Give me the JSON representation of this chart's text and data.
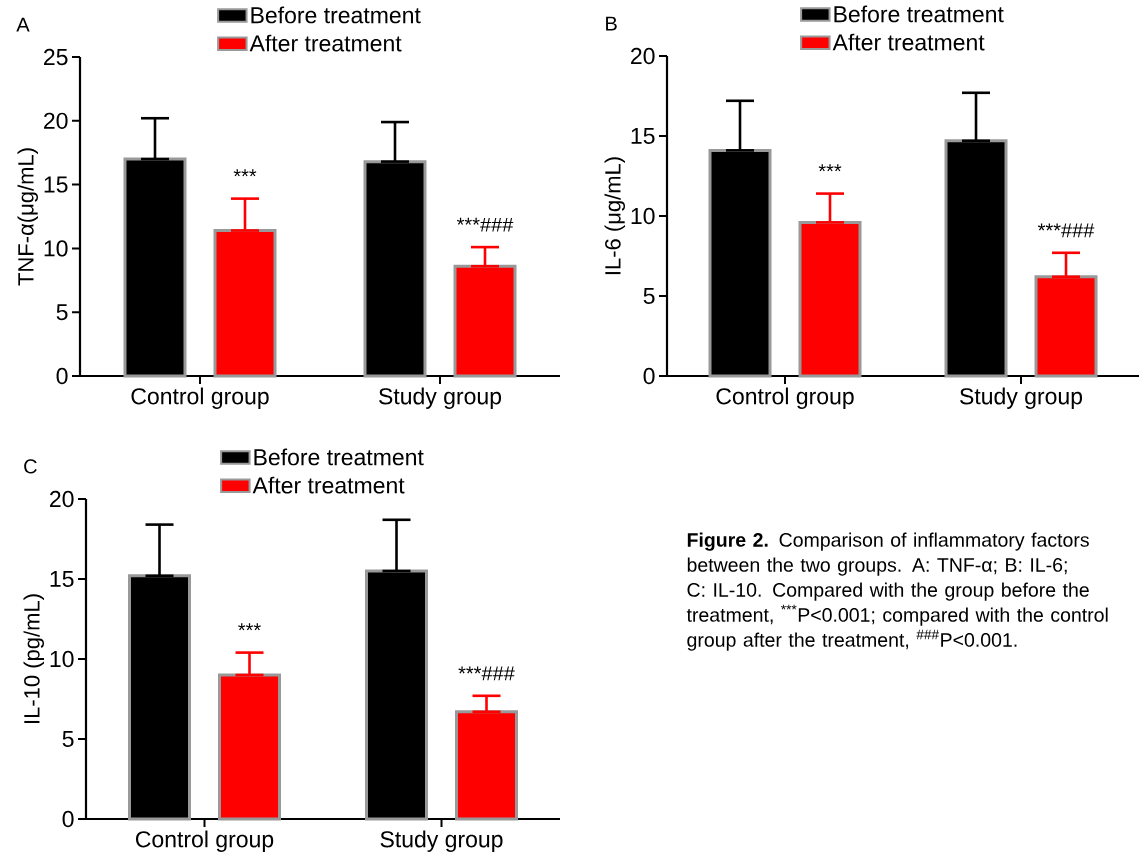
{
  "chart_data": [
    {
      "type": "bar",
      "title": "A",
      "ylabel": "TNF-α(μg/mL)",
      "categories": [
        "Control group",
        "Study group"
      ],
      "series": [
        {
          "name": "Before treatment",
          "color": "#000000",
          "values": [
            17.0,
            16.8
          ],
          "errors": [
            [
              17.0,
              20.2
            ],
            [
              16.8,
              19.9
            ]
          ]
        },
        {
          "name": "After treatment",
          "color": "#ff0000",
          "values": [
            11.4,
            8.6
          ],
          "errors": [
            [
              11.4,
              13.9
            ],
            [
              8.6,
              10.1
            ]
          ]
        }
      ],
      "ylim": [
        0,
        25
      ],
      "yticks": [
        0,
        5,
        10,
        15,
        20,
        25
      ],
      "legend": "top",
      "annotations": [
        "***",
        "***###"
      ]
    },
    {
      "type": "bar",
      "title": "B",
      "ylabel": "IL-6 (μg/mL)",
      "categories": [
        "Control group",
        "Study group"
      ],
      "series": [
        {
          "name": "Before treatment",
          "color": "#000000",
          "values": [
            14.1,
            14.7
          ],
          "errors": [
            [
              14.1,
              17.2
            ],
            [
              14.7,
              17.7
            ]
          ]
        },
        {
          "name": "After treatment",
          "color": "#ff0000",
          "values": [
            9.6,
            6.2
          ],
          "errors": [
            [
              9.6,
              11.4
            ],
            [
              6.2,
              7.7
            ]
          ]
        }
      ],
      "ylim": [
        0,
        20
      ],
      "yticks": [
        0,
        5,
        10,
        15,
        20
      ],
      "legend": "top",
      "annotations": [
        "***",
        "***###"
      ]
    },
    {
      "type": "bar",
      "title": "C",
      "ylabel": "IL-10 (pg/mL)",
      "categories": [
        "Control group",
        "Study group"
      ],
      "series": [
        {
          "name": "Before treatment",
          "color": "#000000",
          "values": [
            15.2,
            15.5
          ],
          "errors": [
            [
              15.2,
              18.4
            ],
            [
              15.5,
              18.7
            ]
          ]
        },
        {
          "name": "After treatment",
          "color": "#ff0000",
          "values": [
            9.0,
            6.7
          ],
          "errors": [
            [
              9.0,
              10.4
            ],
            [
              6.7,
              7.7
            ]
          ]
        }
      ],
      "ylim": [
        0,
        20
      ],
      "yticks": [
        0,
        5,
        10,
        15,
        20
      ],
      "legend": "top",
      "annotations": [
        "***",
        "***###"
      ]
    },
    {
      "type": "other",
      "annotations": [
        "**Figure 2.** Comparison of inflammatory factors between the two groups. A: TNF-α; B: IL-6; C: IL-10. Compared with the group before the treatment, $^{***}$P<0.001; compared with the control group after the treatment, $^{###}$P<0.001."
      ]
    }
  ]
}
